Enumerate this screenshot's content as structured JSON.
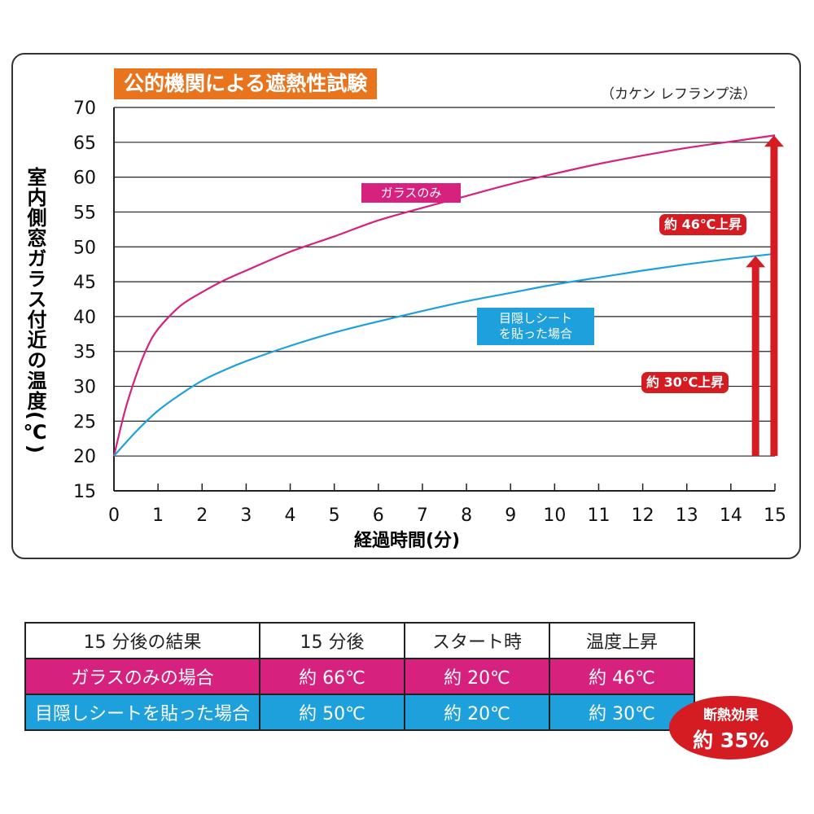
{
  "chart_data": {
    "type": "line",
    "title": "公的機関による遮熱性試験",
    "method_note": "（カケン レフランプ法）",
    "xlabel": "経過時間(分)",
    "ylabel": "室内側窓ガラス付近の温度(℃)",
    "xlim": [
      0,
      15
    ],
    "ylim": [
      15,
      70
    ],
    "x_ticks": [
      "0",
      "1",
      "2",
      "3",
      "4",
      "5",
      "6",
      "7",
      "8",
      "9",
      "10",
      "11",
      "12",
      "13",
      "14",
      "15"
    ],
    "y_ticks": [
      "15",
      "20",
      "25",
      "30",
      "35",
      "40",
      "45",
      "50",
      "55",
      "60",
      "65",
      "70"
    ],
    "grid": "horizontal",
    "series": [
      {
        "name": "ガラスのみ",
        "color": "#d6217e",
        "x": [
          0,
          0.25,
          0.5,
          0.75,
          1,
          1.5,
          2,
          2.5,
          3,
          4,
          5,
          6,
          7,
          8,
          9,
          10,
          11,
          12,
          13,
          14,
          15
        ],
        "y": [
          20,
          26.5,
          31.5,
          35.5,
          38.2,
          41.5,
          43.5,
          45.2,
          46.6,
          49.3,
          51.5,
          53.8,
          55.6,
          57.3,
          59,
          60.5,
          61.9,
          63.1,
          64.2,
          65.1,
          66
        ]
      },
      {
        "name": "目隠しシートを貼った場合",
        "label_lines": [
          "目隠しシート",
          "を貼った場合"
        ],
        "color": "#1ea0dc",
        "x": [
          0,
          0.5,
          1,
          1.5,
          2,
          2.5,
          3,
          4,
          5,
          6,
          7,
          8,
          9,
          10,
          11,
          12,
          13,
          14,
          15
        ],
        "y": [
          20,
          23.5,
          26.5,
          28.8,
          30.8,
          32.3,
          33.6,
          35.8,
          37.7,
          39.3,
          40.8,
          42.2,
          43.4,
          44.6,
          45.6,
          46.6,
          47.5,
          48.3,
          49
        ]
      }
    ],
    "annotations": [
      {
        "text": "約 46℃上昇",
        "color": "#d51c22"
      },
      {
        "text": "約 30℃上昇",
        "color": "#d51c22"
      }
    ]
  },
  "table": {
    "header": [
      "15 分後の結果",
      "15 分後",
      "スタート時",
      "温度上昇"
    ],
    "rows": [
      [
        "ガラスのみの場合",
        "約 66℃",
        "約 20℃",
        "約 46℃"
      ],
      [
        "目隠しシートを貼った場合",
        "約 50℃",
        "約 20℃",
        "約 30℃"
      ]
    ],
    "row_colors": [
      "#d6217e",
      "#1ea0dc"
    ]
  },
  "badge": {
    "line1": "断熱効果",
    "line2": "約 35%"
  }
}
